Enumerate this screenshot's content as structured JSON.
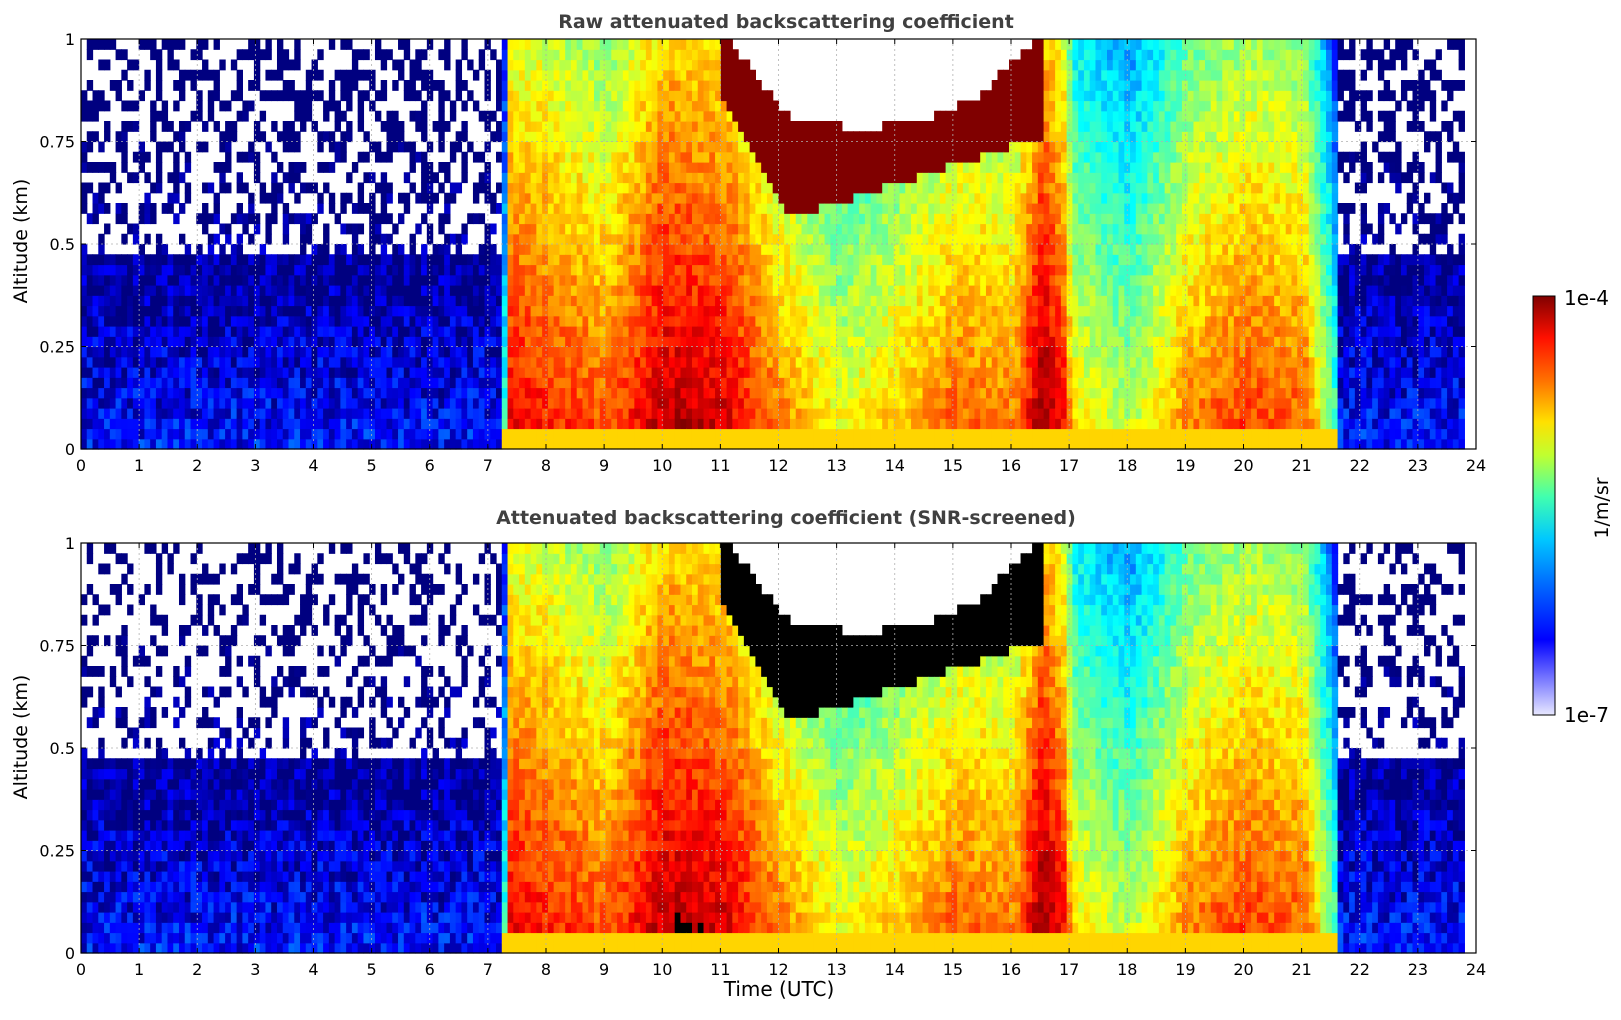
{
  "colors": {
    "text": "#000000",
    "title": "#404040",
    "grid": "#b0b0b0",
    "missing": "#ffffff",
    "saturated_screened": "#000000"
  },
  "colorbar": {
    "label": "1/m/sr",
    "max_label": "1e-4",
    "min_label": "1e-7",
    "range": [
      1e-07,
      0.0001
    ],
    "scale": "log",
    "colormap": "jet"
  },
  "chart_data": [
    {
      "type": "heatmap",
      "title": "Raw attenuated backscattering coefficient",
      "xlabel": "",
      "ylabel": "Altitude (km)",
      "xlim": [
        0,
        24
      ],
      "ylim": [
        0,
        1
      ],
      "xticks": [
        "0",
        "1",
        "2",
        "3",
        "4",
        "5",
        "6",
        "7",
        "8",
        "9",
        "10",
        "11",
        "12",
        "13",
        "14",
        "15",
        "16",
        "17",
        "18",
        "19",
        "20",
        "21",
        "22",
        "23",
        "24"
      ],
      "yticks": [
        "0",
        "0.25",
        "0.5",
        "0.75",
        "1"
      ],
      "grid": true,
      "units": "1/m/sr",
      "data_end_hour": 23.8,
      "log10_level_profile": {
        "hours": [
          0,
          7.2,
          7.3,
          8,
          9,
          10,
          11,
          12,
          13,
          14,
          15,
          16,
          16.5,
          16.9,
          17,
          18,
          19,
          20,
          21,
          21.5,
          21.7,
          23.8
        ],
        "log10_near_ground": [
          -6.6,
          -6.6,
          -4.3,
          -4.4,
          -4.6,
          -4.1,
          -4.2,
          -4.7,
          -5.1,
          -4.9,
          -4.6,
          -4.7,
          -4.0,
          -4.4,
          -5.0,
          -5.3,
          -4.7,
          -4.5,
          -4.6,
          -5.5,
          -6.6,
          -6.6
        ]
      },
      "cloud_layer": {
        "hours": [
          11,
          16.5
        ],
        "base_km": [
          0.85,
          0.55,
          0.6,
          0.65,
          0.7,
          0.75
        ],
        "top_km": [
          1.0,
          0.8,
          0.77,
          0.78,
          0.85,
          1.0
        ],
        "log10_value": -4.0
      }
    },
    {
      "type": "heatmap",
      "title": "Attenuated backscattering coefficient (SNR-screened)",
      "xlabel": "Time (UTC)",
      "ylabel": "Altitude (km)",
      "xlim": [
        0,
        24
      ],
      "ylim": [
        0,
        1
      ],
      "xticks": [
        "0",
        "1",
        "2",
        "3",
        "4",
        "5",
        "6",
        "7",
        "8",
        "9",
        "10",
        "11",
        "12",
        "13",
        "14",
        "15",
        "16",
        "17",
        "18",
        "19",
        "20",
        "21",
        "22",
        "23",
        "24"
      ],
      "yticks": [
        "0",
        "0.25",
        "0.5",
        "0.75",
        "1"
      ],
      "grid": true,
      "units": "1/m/sr",
      "data_end_hour": 23.8,
      "screened": true,
      "cloud_layer": {
        "hours": [
          11,
          16.5
        ],
        "base_km": [
          0.85,
          0.55,
          0.6,
          0.65,
          0.7,
          0.75
        ],
        "top_km": [
          1.0,
          0.8,
          0.77,
          0.78,
          0.85,
          1.0
        ],
        "log10_value": -4.0
      }
    }
  ]
}
